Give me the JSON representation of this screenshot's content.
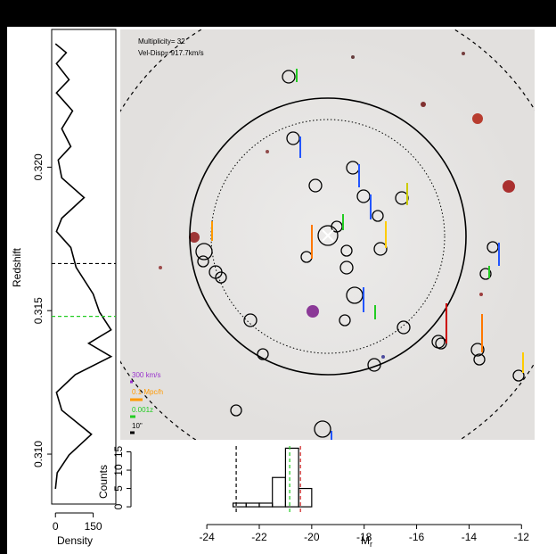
{
  "chart_data": [
    {
      "type": "line",
      "orientation": "vertical",
      "xlabel": "Redshift",
      "ylabel": "Density",
      "x": [
        0.3243,
        0.32399,
        0.32361,
        0.32305,
        0.32259,
        0.32196,
        0.32134,
        0.32072,
        0.32025,
        0.31963,
        0.31894,
        0.31822,
        0.31776,
        0.3172,
        0.31651,
        0.31558,
        0.31495,
        0.31433,
        0.31386,
        0.3134,
        0.31277,
        0.31215,
        0.31153,
        0.31069,
        0.30997,
        0.30935,
        0.30879
      ],
      "values": [
        0,
        43,
        4,
        54,
        4,
        68,
        25,
        61,
        11,
        25,
        114,
        25,
        4,
        61,
        82,
        150,
        175,
        221,
        132,
        221,
        79,
        4,
        25,
        143,
        54,
        7,
        0
      ],
      "color": "#000000",
      "xlim": [
        0.30826,
        0.3248
      ],
      "xticks": [
        {
          "value": 0.31,
          "label": "0.310"
        },
        {
          "value": 0.315,
          "label": "0.315"
        },
        {
          "value": 0.32,
          "label": "0.320"
        }
      ],
      "ylim": [
        -15,
        240
      ],
      "yticks": [
        0,
        150
      ],
      "reference_lines": [
        {
          "value": 0.31664,
          "color": "#000000"
        },
        {
          "value": 0.3148,
          "color": "#22cc22"
        }
      ]
    },
    {
      "type": "image",
      "annotations": [
        {
          "text": "Multiplicity= 32",
          "color": "#000000"
        },
        {
          "text": "Vel-Disp= 917.7km/s",
          "color": "#000000"
        },
        {
          "text": "300 km/s",
          "color": "#9933cc"
        },
        {
          "text": "0.1 Mpc/h",
          "color": "#ff9900"
        },
        {
          "text": "0.001z",
          "color": "#22cc22"
        },
        {
          "text": "10\"",
          "color": "#000000"
        }
      ]
    },
    {
      "type": "histogram",
      "ylabel": "Counts",
      "xlabel": {
        "main": "M",
        "sub": "r"
      },
      "bins": [
        -23,
        -22.5,
        -22,
        -21.5,
        -21,
        -20.5,
        -20
      ],
      "values": [
        1,
        1,
        1,
        8,
        16,
        5
      ],
      "color": "#000000",
      "xlim": [
        -27.3,
        -11.5
      ],
      "xticks": [
        -24,
        -22,
        -20,
        -18,
        -16,
        -14,
        -12
      ],
      "ylim": [
        -2.9,
        17.8
      ],
      "yticks": [
        0,
        5,
        10,
        15
      ],
      "reference_lines": [
        {
          "value": -22.88,
          "color": "#000000"
        },
        {
          "value": -20.84,
          "color": "#22cc22"
        },
        {
          "value": -20.43,
          "color": "#cc2222"
        }
      ]
    }
  ]
}
